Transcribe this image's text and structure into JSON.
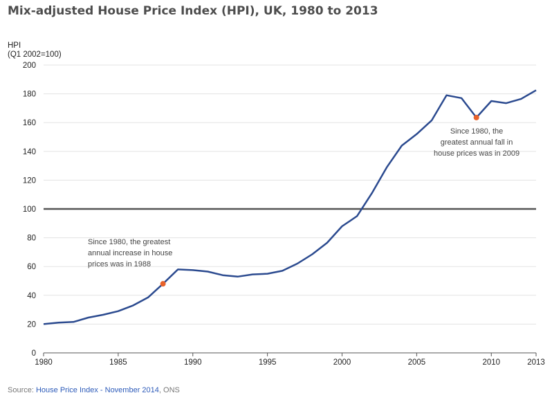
{
  "chart_data": {
    "type": "line",
    "title": "Mix-adjusted House Price Index (HPI), UK, 1980 to 2013",
    "ylabel": "HPI",
    "ylabel_sub": "(Q1 2002=100)",
    "xlim": [
      1980,
      2013
    ],
    "ylim": [
      0,
      200
    ],
    "x_ticks": [
      1980,
      1985,
      1990,
      1995,
      2000,
      2005,
      2010,
      2013
    ],
    "y_ticks": [
      0,
      20,
      40,
      60,
      80,
      100,
      120,
      140,
      160,
      180,
      200
    ],
    "reference_line": 100,
    "grid": "horizontal",
    "series": [
      {
        "color": "#2b4a8f",
        "x": [
          1980,
          1981,
          1982,
          1983,
          1984,
          1985,
          1986,
          1987,
          1988,
          1989,
          1990,
          1991,
          1992,
          1993,
          1994,
          1995,
          1996,
          1997,
          1998,
          1999,
          2000,
          2001,
          2002,
          2003,
          2004,
          2005,
          2006,
          2007,
          2008,
          2009,
          2010,
          2011,
          2012,
          2013
        ],
        "values": [
          20,
          21,
          21.5,
          24.5,
          26.5,
          29,
          33,
          38.5,
          48,
          58,
          57.5,
          56.5,
          54,
          53,
          54.5,
          55,
          57,
          62,
          68.5,
          76.5,
          88,
          95,
          111,
          129,
          144,
          152,
          161.5,
          179,
          177,
          163.5,
          175,
          173.5,
          176.5,
          182.5
        ]
      }
    ],
    "highlights": [
      {
        "x": 1988,
        "y": 48,
        "color": "#e8622b"
      },
      {
        "x": 2009,
        "y": 163.5,
        "color": "#e8622b"
      }
    ],
    "annotations": [
      {
        "text": "Since 1980, the greatest\nannual increase in house\nprices was in 1988"
      },
      {
        "text": "Since 1980, the\ngreatest annual fall in\nhouse prices was in 2009"
      }
    ]
  },
  "source": {
    "prefix": "Source: ",
    "link_text": "House Price Index - November 2014",
    "suffix": ", ONS"
  }
}
